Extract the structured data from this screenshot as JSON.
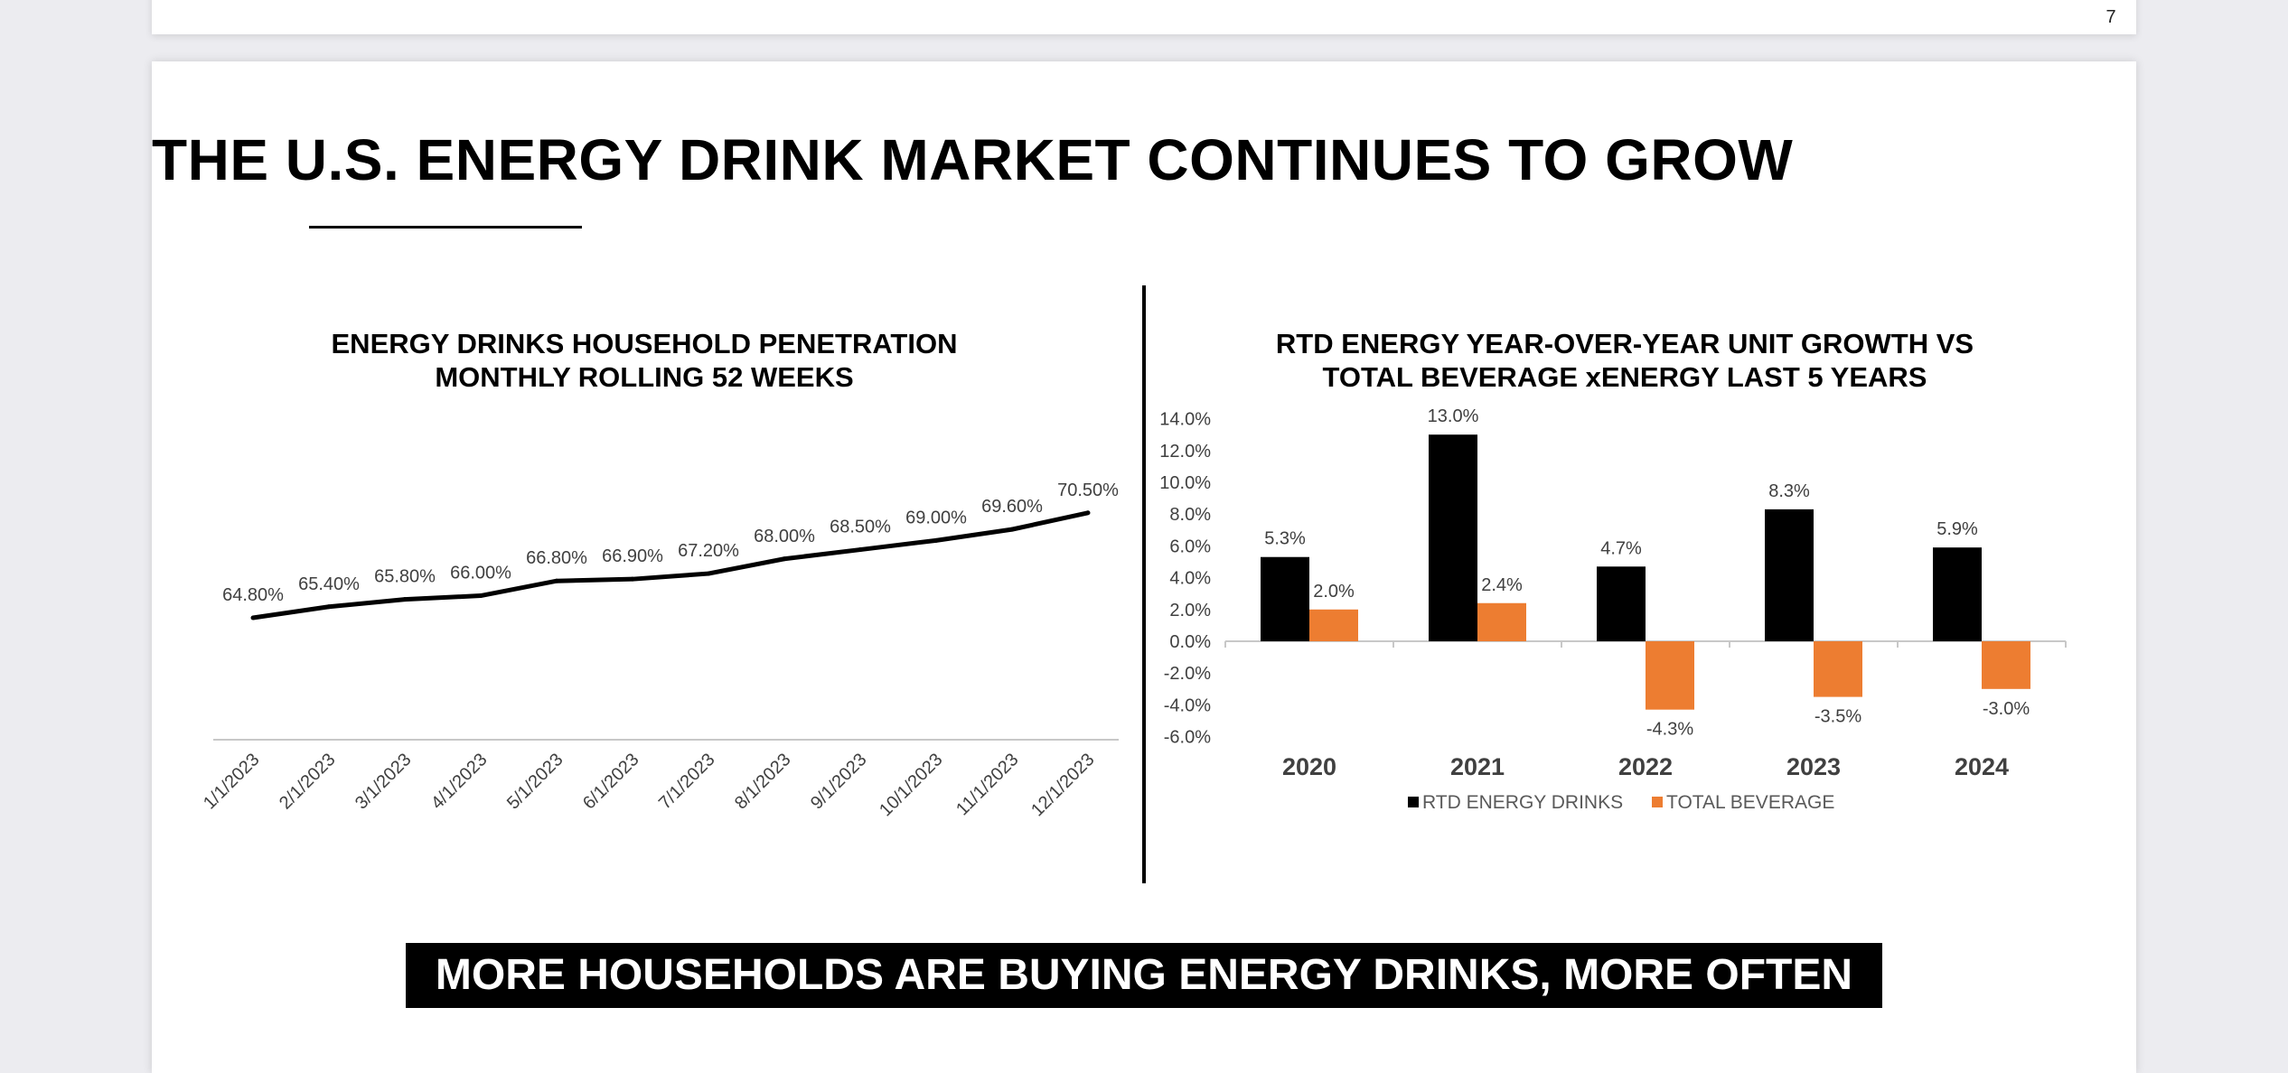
{
  "page_number": "7",
  "slide": {
    "title": "THE U.S. ENERGY DRINK MARKET CONTINUES TO GROW",
    "banner": "MORE HOUSEHOLDS ARE BUYING ENERGY DRINKS, MORE OFTEN"
  },
  "colors": {
    "rtd": "#000000",
    "total": "#ED7D31",
    "line": "#000000",
    "axis": "#c8c8c8"
  },
  "chart_data": [
    {
      "type": "line",
      "title_lines": [
        "ENERGY DRINKS HOUSEHOLD PENETRATION",
        "MONTHLY ROLLING 52 WEEKS"
      ],
      "x": [
        "1/1/2023",
        "2/1/2023",
        "3/1/2023",
        "4/1/2023",
        "5/1/2023",
        "6/1/2023",
        "7/1/2023",
        "8/1/2023",
        "9/1/2023",
        "10/1/2023",
        "11/1/2023",
        "12/1/2023"
      ],
      "values": [
        64.8,
        65.4,
        65.8,
        66.0,
        66.8,
        66.9,
        67.2,
        68.0,
        68.5,
        69.0,
        69.6,
        70.5
      ],
      "data_labels": [
        "64.80%",
        "65.40%",
        "65.80%",
        "66.00%",
        "66.80%",
        "66.90%",
        "67.20%",
        "68.00%",
        "68.50%",
        "69.00%",
        "69.60%",
        "70.50%"
      ],
      "ylim": [
        60.0,
        71.5
      ],
      "xlabel": "",
      "ylabel": ""
    },
    {
      "type": "bar",
      "title_lines": [
        "RTD ENERGY YEAR-OVER-YEAR UNIT GROWTH VS",
        "TOTAL BEVERAGE xENERGY LAST 5 YEARS"
      ],
      "categories": [
        "2020",
        "2021",
        "2022",
        "2023",
        "2024"
      ],
      "series": [
        {
          "name": "RTD ENERGY DRINKS",
          "values": [
            5.3,
            13.0,
            4.7,
            8.3,
            5.9
          ],
          "labels": [
            "5.3%",
            "13.0%",
            "4.7%",
            "8.3%",
            "5.9%"
          ]
        },
        {
          "name": "TOTAL BEVERAGE",
          "values": [
            2.0,
            2.4,
            -4.3,
            -3.5,
            -3.0
          ],
          "labels": [
            "2.0%",
            "2.4%",
            "-4.3%",
            "-3.5%",
            "-3.0%"
          ]
        }
      ],
      "yticks": [
        "14.0%",
        "12.0%",
        "10.0%",
        "8.0%",
        "6.0%",
        "4.0%",
        "2.0%",
        "0.0%",
        "-2.0%",
        "-4.0%",
        "-6.0%"
      ],
      "ylim": [
        -6.0,
        14.0
      ],
      "legend": "bottom",
      "xlabel": "",
      "ylabel": ""
    }
  ]
}
